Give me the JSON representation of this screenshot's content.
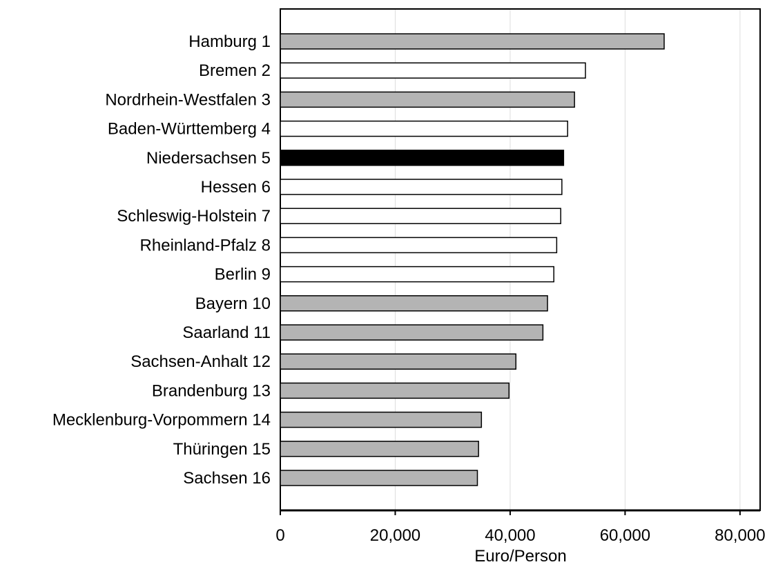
{
  "chart_data": {
    "type": "bar",
    "orientation": "horizontal",
    "xlabel": "Euro/Person",
    "xlim": [
      0,
      83500
    ],
    "xticks": [
      0,
      20000,
      40000,
      60000,
      80000
    ],
    "xtick_labels": [
      "0",
      "20,000",
      "40,000",
      "60,000",
      "80,000"
    ],
    "grid": "vertical",
    "categories": [
      "Hamburg 1",
      "Bremen 2",
      "Nordrhein-Westfalen 3",
      "Baden-Württemberg 4",
      "Niedersachsen 5",
      "Hessen 6",
      "Schleswig-Holstein 7",
      "Rheinland-Pfalz 8",
      "Berlin 9",
      "Bayern 10",
      "Saarland 11",
      "Sachsen-Anhalt 12",
      "Brandenburg 13",
      "Mecklenburg-Vorpommern 14",
      "Thüringen 15",
      "Sachsen 16"
    ],
    "values": [
      66800,
      53100,
      51200,
      50000,
      49300,
      49000,
      48800,
      48100,
      47600,
      46500,
      45700,
      41000,
      39800,
      35000,
      34500,
      34300
    ],
    "bar_colors": [
      "#b4b4b4",
      "#ffffff",
      "#b4b4b4",
      "#ffffff",
      "#000000",
      "#ffffff",
      "#ffffff",
      "#ffffff",
      "#ffffff",
      "#b4b4b4",
      "#b4b4b4",
      "#b4b4b4",
      "#b4b4b4",
      "#b4b4b4",
      "#b4b4b4",
      "#b4b4b4"
    ]
  }
}
